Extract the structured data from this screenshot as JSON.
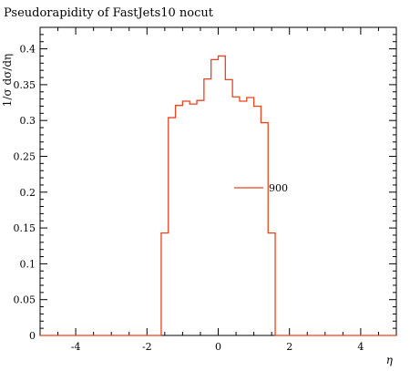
{
  "chart_data": {
    "type": "line",
    "title": "Pseudorapidity of FastJets10 nocut",
    "xlabel": "η",
    "ylabel": "1/σ dσ/dη",
    "xlim": [
      -5,
      5
    ],
    "ylim": [
      0,
      0.43
    ],
    "grid": false,
    "legend_placement": "center-right",
    "x_major_ticks": [
      -4,
      -2,
      0,
      2,
      4
    ],
    "x_tick_labels": [
      "-4",
      "-2",
      "0",
      "2",
      "4"
    ],
    "y_major_ticks": [
      0,
      0.05,
      0.1,
      0.15,
      0.2,
      0.25,
      0.3,
      0.35,
      0.4
    ],
    "y_tick_labels": [
      "0",
      "0.05",
      "0.1",
      "0.15",
      "0.2",
      "0.25",
      "0.3",
      "0.35",
      "0.4"
    ],
    "series": [
      {
        "name": "900",
        "color": "#e8451f",
        "style": "step",
        "bins": [
          {
            "xlow": -1.6,
            "xhigh": -1.4,
            "y": 0.143
          },
          {
            "xlow": -1.4,
            "xhigh": -1.2,
            "y": 0.304
          },
          {
            "xlow": -1.2,
            "xhigh": -1.0,
            "y": 0.321
          },
          {
            "xlow": -1.0,
            "xhigh": -0.8,
            "y": 0.327
          },
          {
            "xlow": -0.8,
            "xhigh": -0.6,
            "y": 0.323
          },
          {
            "xlow": -0.6,
            "xhigh": -0.4,
            "y": 0.328
          },
          {
            "xlow": -0.4,
            "xhigh": -0.2,
            "y": 0.358
          },
          {
            "xlow": -0.2,
            "xhigh": 0.0,
            "y": 0.385
          },
          {
            "xlow": 0.0,
            "xhigh": 0.2,
            "y": 0.39
          },
          {
            "xlow": 0.2,
            "xhigh": 0.4,
            "y": 0.357
          },
          {
            "xlow": 0.4,
            "xhigh": 0.6,
            "y": 0.333
          },
          {
            "xlow": 0.6,
            "xhigh": 0.8,
            "y": 0.327
          },
          {
            "xlow": 0.8,
            "xhigh": 1.0,
            "y": 0.332
          },
          {
            "xlow": 1.0,
            "xhigh": 1.2,
            "y": 0.32
          },
          {
            "xlow": 1.2,
            "xhigh": 1.4,
            "y": 0.297
          },
          {
            "xlow": 1.4,
            "xhigh": 1.6,
            "y": 0.143
          }
        ]
      }
    ]
  }
}
